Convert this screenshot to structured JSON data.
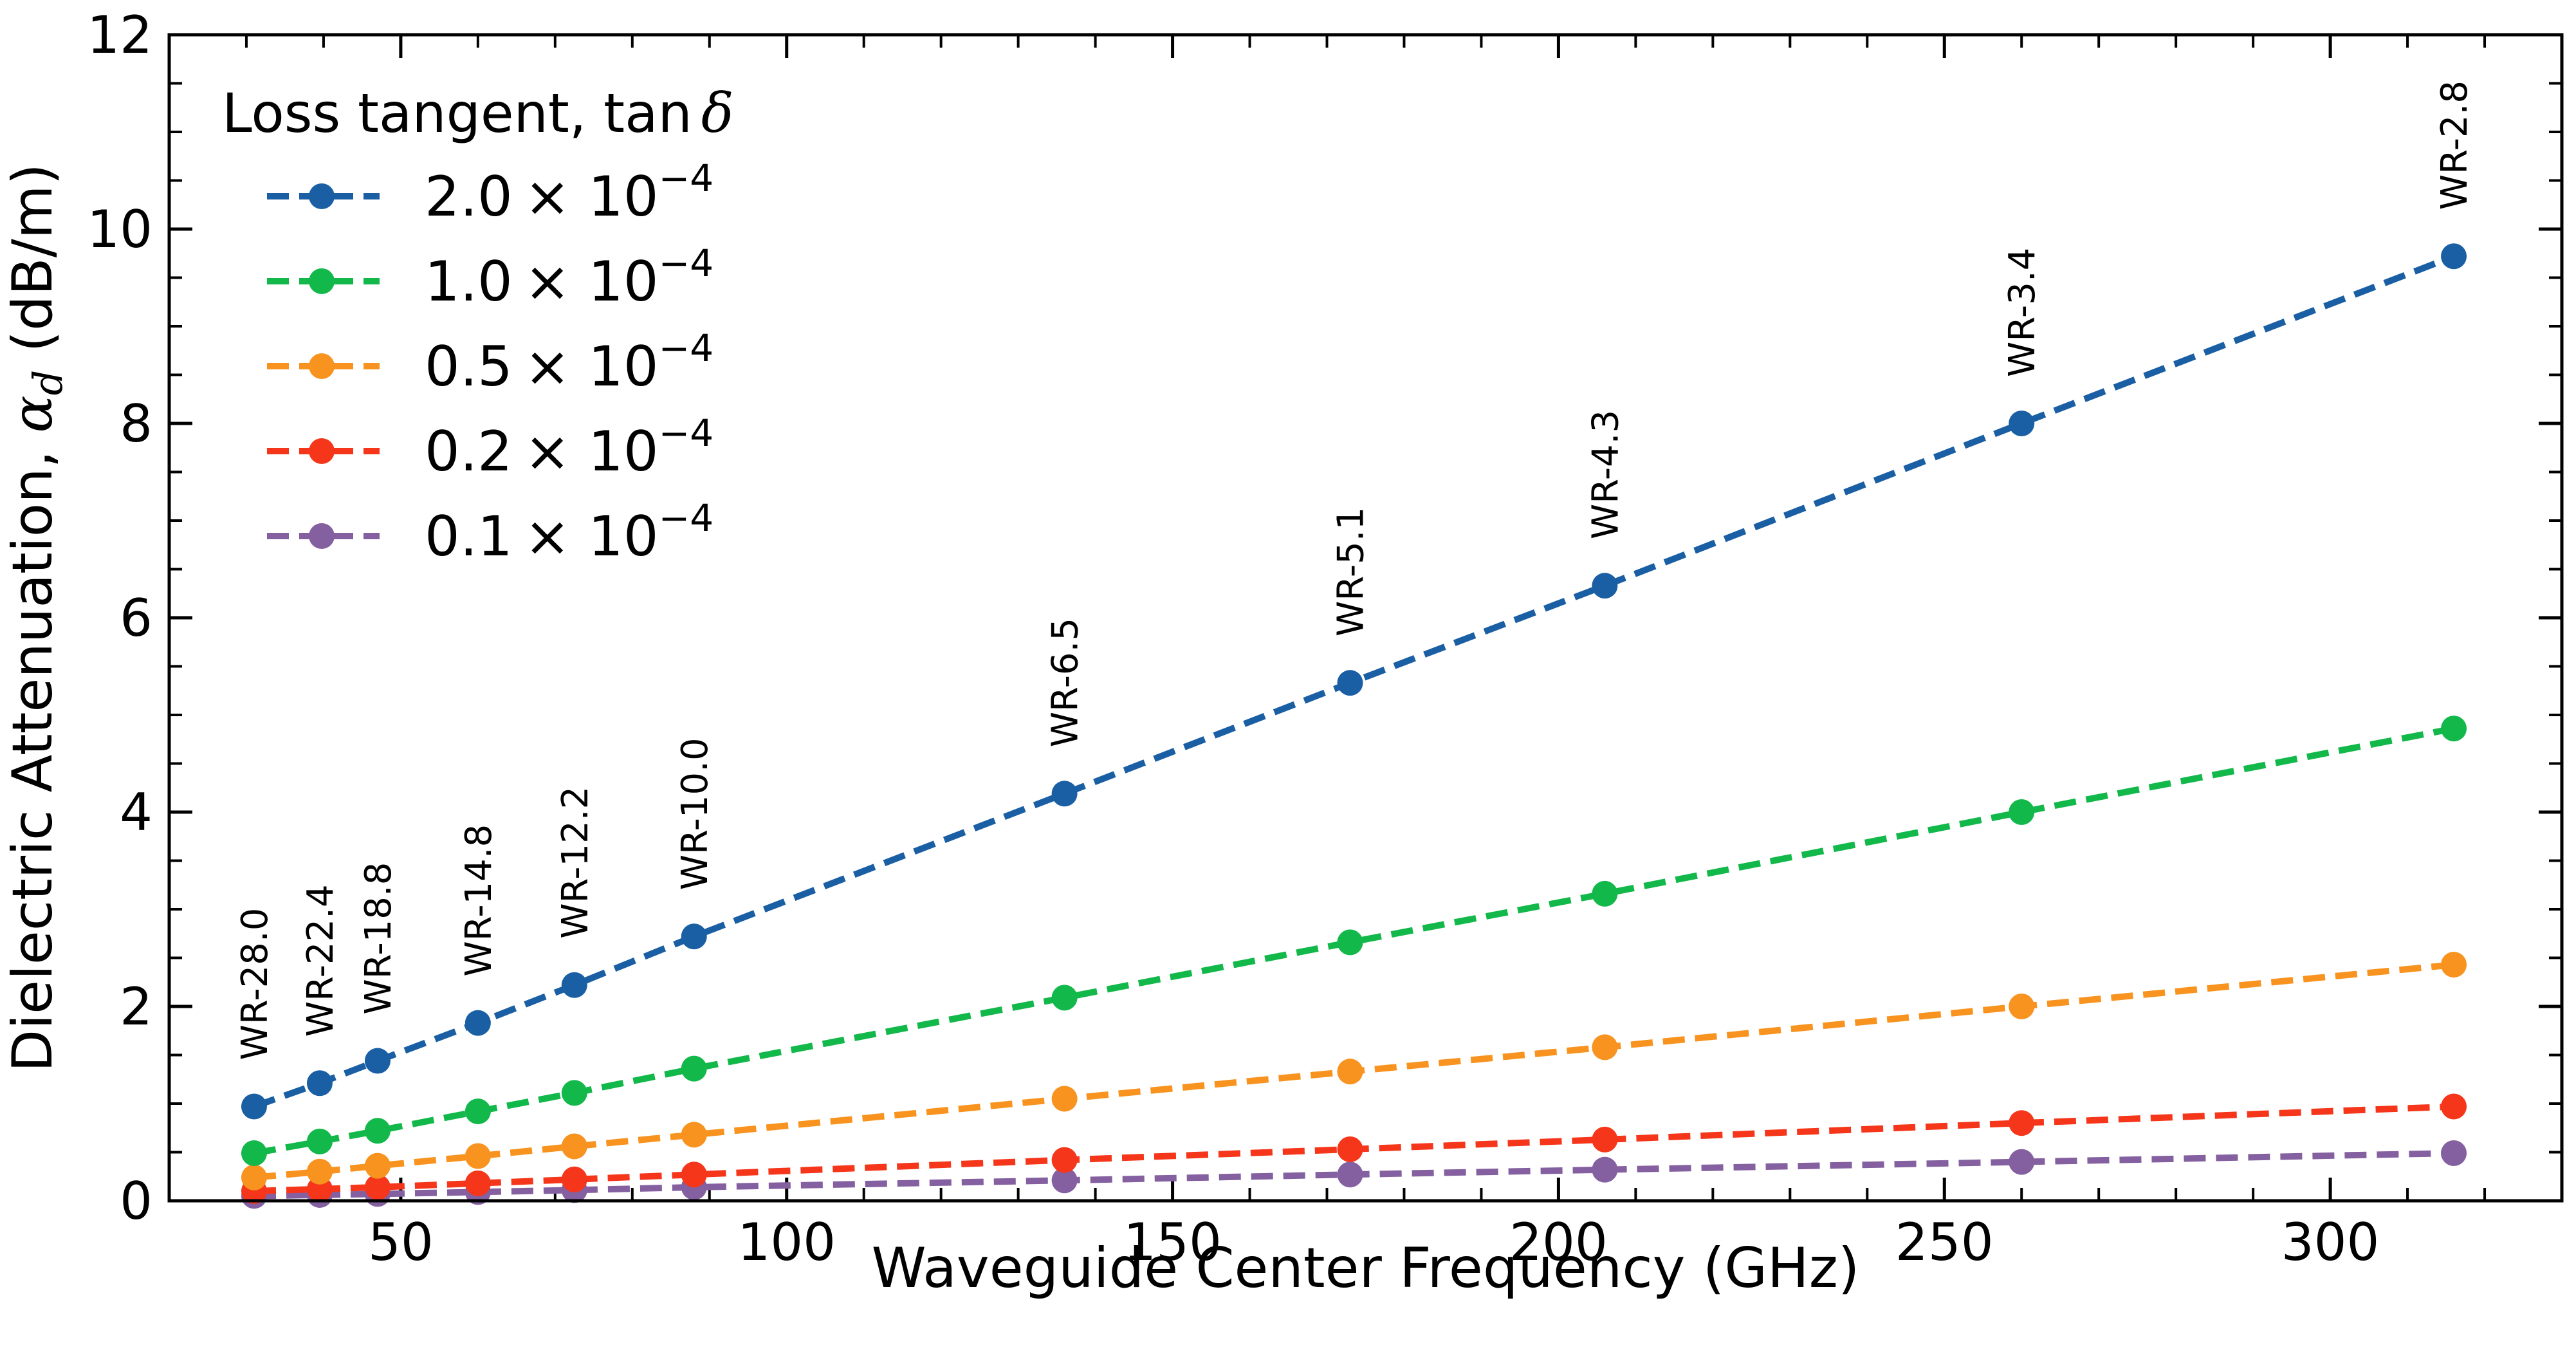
{
  "chart_data": {
    "type": "line",
    "xlabel": "Waveguide Center Frequency (GHz)",
    "ylabel_main": "Dielectric Attenuation, ",
    "ylabel_symbol": "α",
    "ylabel_sub": "d",
    "ylabel_unit": " (dB/m)",
    "xlim": [
      20,
      330
    ],
    "ylim": [
      0,
      12
    ],
    "xticks": [
      50,
      100,
      150,
      200,
      250,
      300
    ],
    "yticks": [
      0,
      2,
      4,
      6,
      8,
      10,
      12
    ],
    "x": [
      31,
      39.5,
      47,
      60,
      72.5,
      88,
      136,
      173,
      206,
      260,
      316
    ],
    "waveguides": [
      "WR-28.0",
      "WR-22.4",
      "WR-18.8",
      "WR-14.8",
      "WR-12.2",
      "WR-10.0",
      "WR-6.5",
      "WR-5.1",
      "WR-4.3",
      "WR-3.4",
      "WR-2.8"
    ],
    "legend_title_text": "Loss tangent, tan",
    "legend_title_symbol": "δ",
    "legend_placement": "top-left",
    "grid": false,
    "series": [
      {
        "name_coef": "2.0",
        "name_base": "× 10",
        "name_exp": "−4",
        "color": "#1a5fa3",
        "values": [
          0.97,
          1.21,
          1.44,
          1.83,
          2.22,
          2.72,
          4.19,
          5.33,
          6.33,
          8.0,
          9.72
        ]
      },
      {
        "name_coef": "1.0",
        "name_base": "× 10",
        "name_exp": "−4",
        "color": "#12b84a",
        "values": [
          0.49,
          0.61,
          0.72,
          0.92,
          1.11,
          1.36,
          2.09,
          2.66,
          3.16,
          4.0,
          4.86
        ]
      },
      {
        "name_coef": "0.5",
        "name_base": "× 10",
        "name_exp": "−4",
        "color": "#f7931e",
        "values": [
          0.24,
          0.3,
          0.36,
          0.46,
          0.56,
          0.68,
          1.05,
          1.33,
          1.58,
          2.0,
          2.43
        ]
      },
      {
        "name_coef": "0.2",
        "name_base": "× 10",
        "name_exp": "−4",
        "color": "#f5361a",
        "values": [
          0.1,
          0.12,
          0.14,
          0.18,
          0.22,
          0.27,
          0.42,
          0.53,
          0.63,
          0.8,
          0.97
        ]
      },
      {
        "name_coef": "0.1",
        "name_base": "× 10",
        "name_exp": "−4",
        "color": "#8460a0",
        "values": [
          0.05,
          0.06,
          0.07,
          0.09,
          0.11,
          0.14,
          0.21,
          0.27,
          0.32,
          0.4,
          0.49
        ]
      }
    ]
  }
}
